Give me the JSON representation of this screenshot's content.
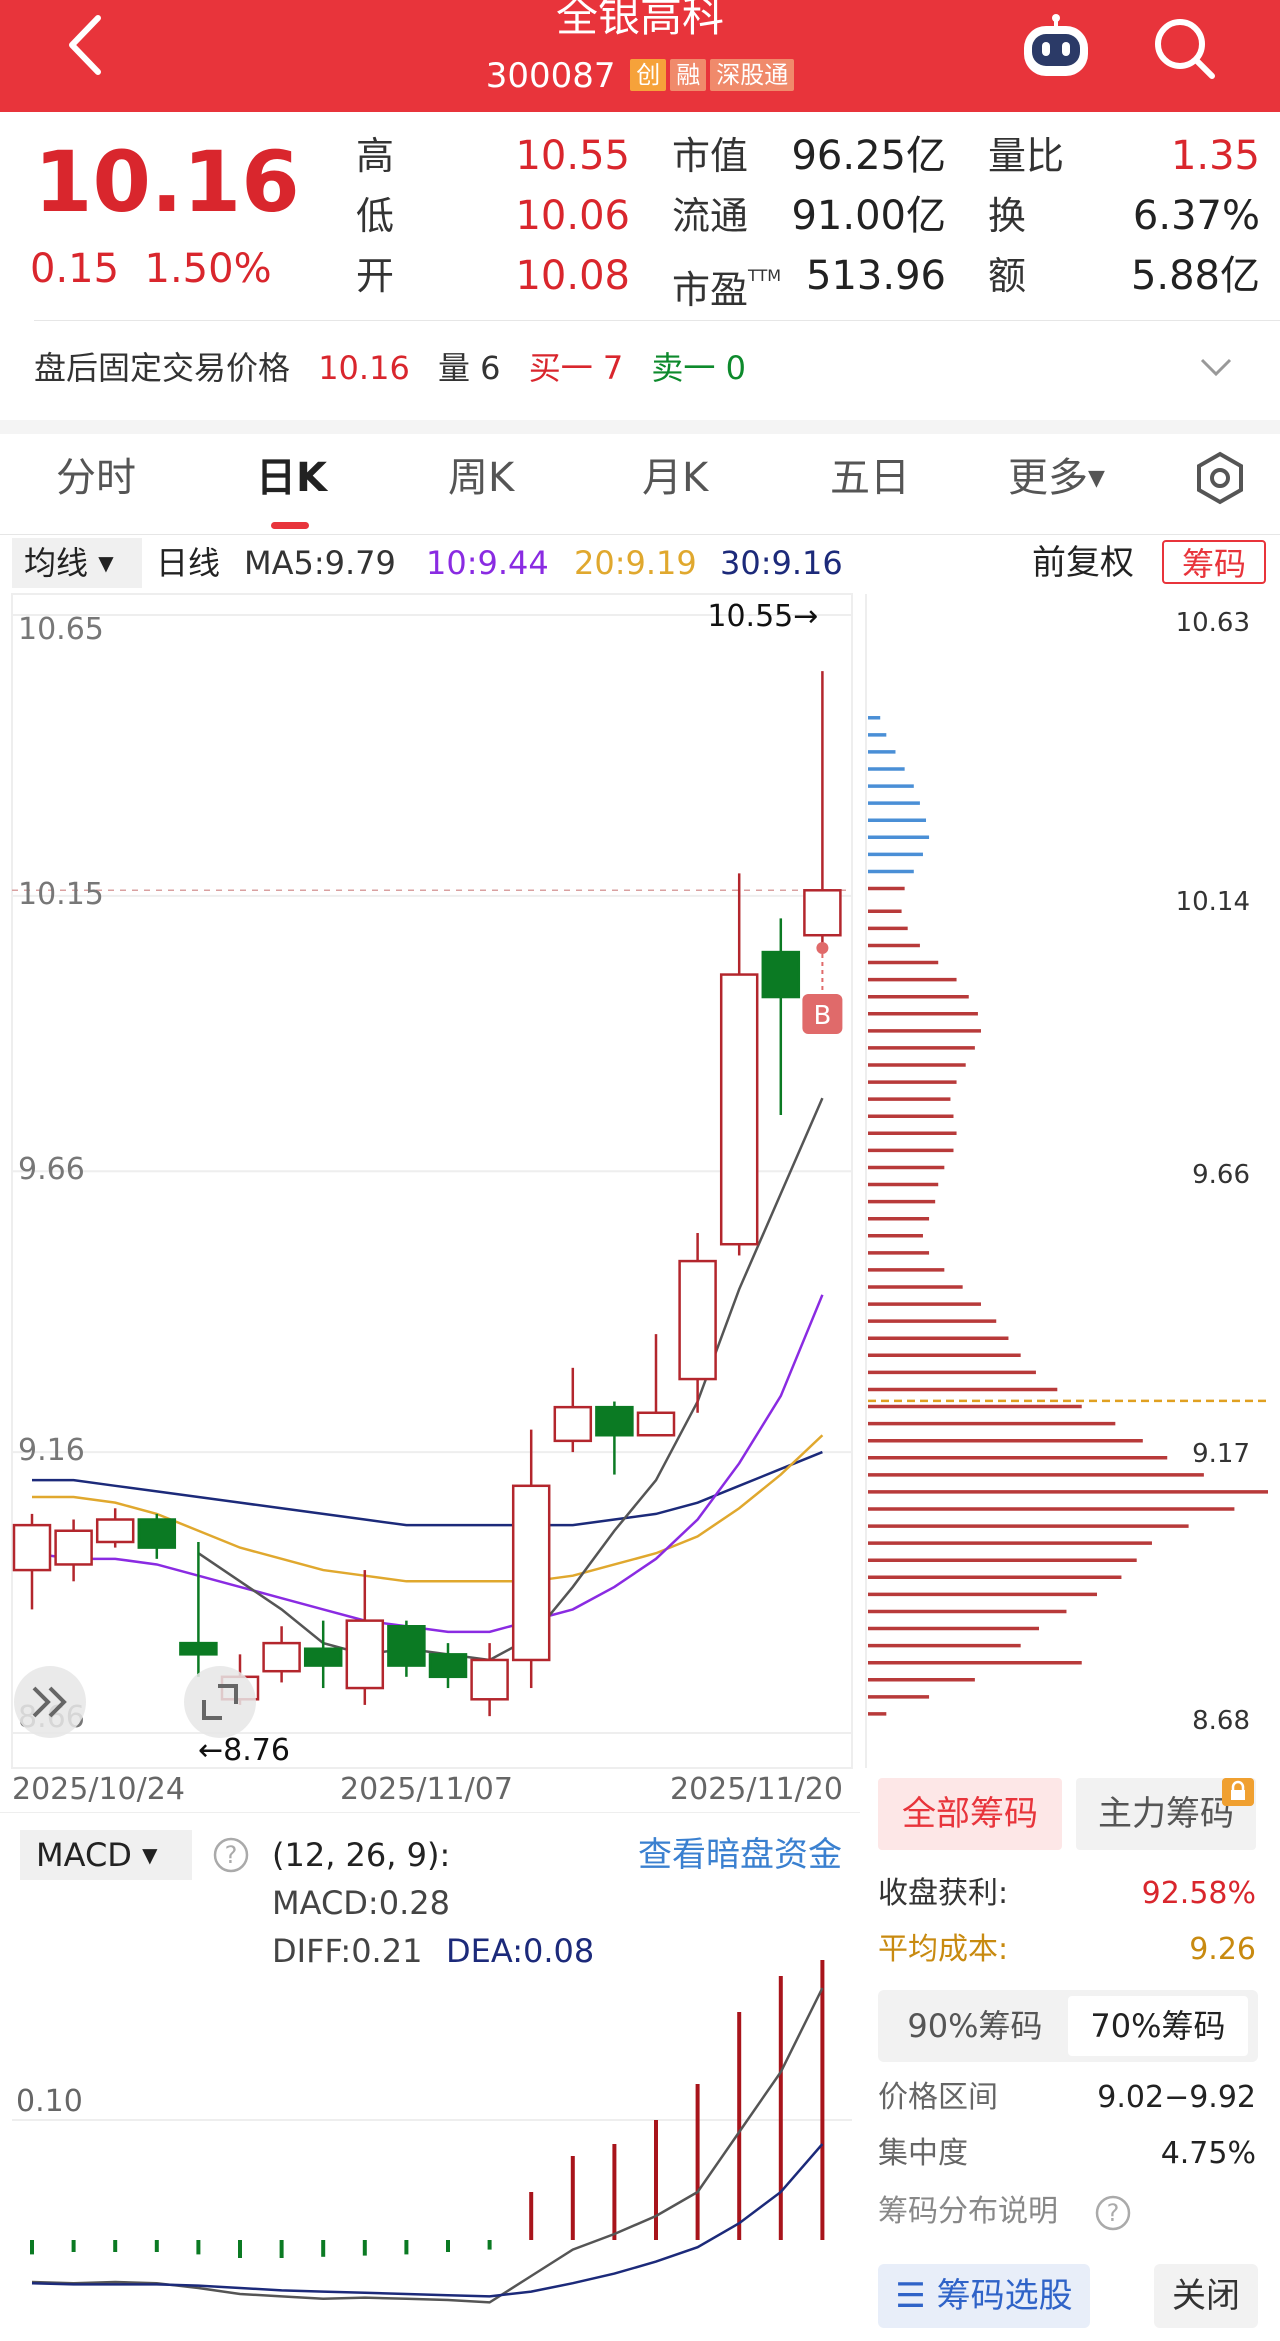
{
  "header": {
    "title": "全银高科",
    "code": "300087",
    "tags": [
      "创",
      "融",
      "深股通"
    ]
  },
  "quote": {
    "price": "10.16",
    "change": "0.15",
    "change_pct": "1.50%",
    "high_label": "高",
    "high": "10.55",
    "low_label": "低",
    "low": "10.06",
    "open_label": "开",
    "open": "10.08",
    "mcap_label": "市值",
    "mcap": "96.25亿",
    "float_label": "流通",
    "float": "91.00亿",
    "pe_label": "市盈",
    "pe_sup": "TTM",
    "pe": "513.96",
    "vol_ratio_label": "量比",
    "vol_ratio": "1.35",
    "turnover_label": "换",
    "turnover": "6.37%",
    "amount_label": "额",
    "amount": "5.88亿"
  },
  "after_hours": {
    "label": "盘后固定交易价格",
    "price": "10.16",
    "vol_label": "量 6",
    "buy1": "买一 7",
    "sell1": "卖一 0"
  },
  "tabs": [
    "分时",
    "日K",
    "周K",
    "月K",
    "五日",
    "更多"
  ],
  "ma": {
    "select": "均线",
    "period": "日线",
    "ma5": "MA5:9.79",
    "ma10": "10:9.44",
    "ma20": "20:9.19",
    "ma30": "30:9.16",
    "colors": {
      "ma5": "#555555",
      "ma10": "#8a2be2",
      "ma20": "#e0a82e",
      "ma30": "#1c2a7a"
    }
  },
  "fuquan": "前复权",
  "chouma_button": "筹码",
  "chart_data": {
    "type": "candlestick",
    "y_ticks": [
      "10.65",
      "10.15",
      "9.66",
      "9.16",
      "8.66"
    ],
    "ylim": [
      8.66,
      10.65
    ],
    "x_ticks": [
      "2025/10/24",
      "2025/11/07",
      "2025/11/20"
    ],
    "high_marker": "10.55",
    "low_marker": "8.76",
    "b_marker": "B",
    "candles": [
      {
        "o": 8.95,
        "c": 9.03,
        "h": 9.05,
        "l": 8.88
      },
      {
        "o": 8.96,
        "c": 9.02,
        "h": 9.04,
        "l": 8.93
      },
      {
        "o": 9.0,
        "c": 9.04,
        "h": 9.06,
        "l": 8.99
      },
      {
        "o": 9.04,
        "c": 8.99,
        "h": 9.05,
        "l": 8.97
      },
      {
        "o": 8.82,
        "c": 8.8,
        "h": 9.0,
        "l": 8.76
      },
      {
        "o": 8.72,
        "c": 8.76,
        "h": 8.8,
        "l": 8.71
      },
      {
        "o": 8.77,
        "c": 8.82,
        "h": 8.85,
        "l": 8.75
      },
      {
        "o": 8.81,
        "c": 8.78,
        "h": 8.86,
        "l": 8.74
      },
      {
        "o": 8.74,
        "c": 8.86,
        "h": 8.95,
        "l": 8.71
      },
      {
        "o": 8.85,
        "c": 8.78,
        "h": 8.86,
        "l": 8.76
      },
      {
        "o": 8.8,
        "c": 8.76,
        "h": 8.82,
        "l": 8.74
      },
      {
        "o": 8.72,
        "c": 8.79,
        "h": 8.82,
        "l": 8.69
      },
      {
        "o": 8.79,
        "c": 9.1,
        "h": 9.2,
        "l": 8.74
      },
      {
        "o": 9.18,
        "c": 9.24,
        "h": 9.31,
        "l": 9.16
      },
      {
        "o": 9.24,
        "c": 9.19,
        "h": 9.25,
        "l": 9.12
      },
      {
        "o": 9.19,
        "c": 9.23,
        "h": 9.37,
        "l": 9.19
      },
      {
        "o": 9.29,
        "c": 9.5,
        "h": 9.55,
        "l": 9.23
      },
      {
        "o": 9.53,
        "c": 10.01,
        "h": 10.19,
        "l": 9.51
      },
      {
        "o": 10.05,
        "c": 9.97,
        "h": 10.11,
        "l": 9.76
      },
      {
        "o": 10.08,
        "c": 10.16,
        "h": 10.55,
        "l": 10.06
      }
    ],
    "ma5": [
      null,
      null,
      null,
      null,
      8.98,
      8.93,
      8.88,
      8.82,
      8.8,
      8.81,
      8.8,
      8.79,
      8.83,
      8.92,
      9.02,
      9.11,
      9.25,
      9.45,
      9.62,
      9.79
    ],
    "ma10": [
      8.98,
      8.97,
      8.97,
      8.96,
      8.94,
      8.92,
      8.9,
      8.88,
      8.86,
      8.85,
      8.84,
      8.84,
      8.86,
      8.88,
      8.92,
      8.97,
      9.04,
      9.14,
      9.26,
      9.44
    ],
    "ma20": [
      9.08,
      9.08,
      9.07,
      9.05,
      9.02,
      8.99,
      8.97,
      8.95,
      8.94,
      8.93,
      8.93,
      8.93,
      8.93,
      8.94,
      8.96,
      8.98,
      9.01,
      9.06,
      9.12,
      9.19
    ],
    "ma30": [
      9.11,
      9.11,
      9.1,
      9.09,
      9.08,
      9.07,
      9.06,
      9.05,
      9.04,
      9.03,
      9.03,
      9.03,
      9.03,
      9.03,
      9.04,
      9.05,
      9.07,
      9.1,
      9.13,
      9.16
    ],
    "chips_ticks": [
      "10.63",
      "10.14",
      "9.66",
      "9.17",
      "8.68"
    ],
    "chips_ylim": [
      8.68,
      10.63
    ],
    "chips_avg": 9.26,
    "chips_profile": [
      {
        "p": 10.46,
        "v": 8
      },
      {
        "p": 10.43,
        "v": 12
      },
      {
        "p": 10.4,
        "v": 18
      },
      {
        "p": 10.37,
        "v": 24
      },
      {
        "p": 10.34,
        "v": 30
      },
      {
        "p": 10.31,
        "v": 34
      },
      {
        "p": 10.28,
        "v": 38
      },
      {
        "p": 10.25,
        "v": 40
      },
      {
        "p": 10.22,
        "v": 36
      },
      {
        "p": 10.19,
        "v": 30
      },
      {
        "p": 10.16,
        "v": 24
      },
      {
        "p": 10.12,
        "v": 22
      },
      {
        "p": 10.09,
        "v": 26
      },
      {
        "p": 10.06,
        "v": 34
      },
      {
        "p": 10.03,
        "v": 46
      },
      {
        "p": 10.0,
        "v": 58
      },
      {
        "p": 9.97,
        "v": 66
      },
      {
        "p": 9.94,
        "v": 72
      },
      {
        "p": 9.91,
        "v": 74
      },
      {
        "p": 9.88,
        "v": 70
      },
      {
        "p": 9.85,
        "v": 64
      },
      {
        "p": 9.82,
        "v": 58
      },
      {
        "p": 9.79,
        "v": 54
      },
      {
        "p": 9.76,
        "v": 56
      },
      {
        "p": 9.73,
        "v": 58
      },
      {
        "p": 9.7,
        "v": 56
      },
      {
        "p": 9.67,
        "v": 50
      },
      {
        "p": 9.64,
        "v": 46
      },
      {
        "p": 9.61,
        "v": 44
      },
      {
        "p": 9.58,
        "v": 40
      },
      {
        "p": 9.55,
        "v": 36
      },
      {
        "p": 9.52,
        "v": 40
      },
      {
        "p": 9.49,
        "v": 50
      },
      {
        "p": 9.46,
        "v": 62
      },
      {
        "p": 9.43,
        "v": 74
      },
      {
        "p": 9.4,
        "v": 84
      },
      {
        "p": 9.37,
        "v": 92
      },
      {
        "p": 9.34,
        "v": 100
      },
      {
        "p": 9.31,
        "v": 110
      },
      {
        "p": 9.28,
        "v": 124
      },
      {
        "p": 9.25,
        "v": 140
      },
      {
        "p": 9.22,
        "v": 162
      },
      {
        "p": 9.19,
        "v": 180
      },
      {
        "p": 9.16,
        "v": 196
      },
      {
        "p": 9.13,
        "v": 220
      },
      {
        "p": 9.1,
        "v": 262
      },
      {
        "p": 9.07,
        "v": 240
      },
      {
        "p": 9.04,
        "v": 210
      },
      {
        "p": 9.01,
        "v": 186
      },
      {
        "p": 8.98,
        "v": 176
      },
      {
        "p": 8.95,
        "v": 166
      },
      {
        "p": 8.92,
        "v": 150
      },
      {
        "p": 8.89,
        "v": 130
      },
      {
        "p": 8.86,
        "v": 112
      },
      {
        "p": 8.83,
        "v": 100
      },
      {
        "p": 8.8,
        "v": 140
      },
      {
        "p": 8.77,
        "v": 70
      },
      {
        "p": 8.74,
        "v": 40
      },
      {
        "p": 8.71,
        "v": 12
      }
    ]
  },
  "macd": {
    "select": "MACD",
    "params": "(12, 26, 9):",
    "macd_text": "MACD:0.28",
    "diff_text": "DIFF:0.21",
    "dea_text": "DEA:0.08",
    "link": "查看暗盘资金",
    "y_tick": "0.10",
    "ylim": [
      -0.05,
      0.3
    ],
    "bars": [
      -0.012,
      -0.01,
      -0.01,
      -0.01,
      -0.012,
      -0.015,
      -0.015,
      -0.014,
      -0.013,
      -0.012,
      -0.01,
      -0.008,
      0.04,
      0.07,
      0.08,
      0.1,
      0.13,
      0.19,
      0.22,
      0.28
    ],
    "diff": [
      -0.035,
      -0.036,
      -0.035,
      -0.036,
      -0.04,
      -0.045,
      -0.047,
      -0.049,
      -0.048,
      -0.049,
      -0.05,
      -0.052,
      -0.03,
      -0.008,
      0.005,
      0.02,
      0.04,
      0.09,
      0.14,
      0.21
    ],
    "dea": [
      -0.036,
      -0.037,
      -0.037,
      -0.037,
      -0.038,
      -0.04,
      -0.042,
      -0.043,
      -0.044,
      -0.045,
      -0.046,
      -0.047,
      -0.043,
      -0.036,
      -0.028,
      -0.018,
      -0.006,
      0.014,
      0.04,
      0.08
    ]
  },
  "chips_panel": {
    "tab_all": "全部筹码",
    "tab_main": "主力筹码",
    "profit_label": "收盘获利:",
    "profit": "92.58%",
    "avg_cost_label": "平均成本:",
    "avg_cost": "9.26",
    "pct90": "90%筹码",
    "pct70": "70%筹码",
    "range_label": "价格区间",
    "range": "9.02−9.92",
    "concentration_label": "集中度",
    "concentration": "4.75%",
    "desc_label": "筹码分布说明",
    "select_button": "筹码选股",
    "close_button": "关闭"
  }
}
